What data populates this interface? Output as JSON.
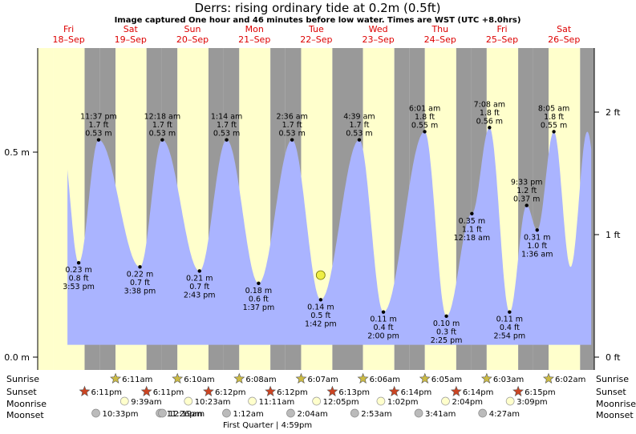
{
  "header": {
    "title": "Derrs: rising  ordinary tide at 0.2m (0.5ft)",
    "subtitle": "Image captured One hour and 46 minutes before low water. Times are WST (UTC +8.0hrs)"
  },
  "days": [
    {
      "dow": "Fri",
      "date": "18–Sep"
    },
    {
      "dow": "Sat",
      "date": "19–Sep"
    },
    {
      "dow": "Sun",
      "date": "20–Sep"
    },
    {
      "dow": "Mon",
      "date": "21–Sep"
    },
    {
      "dow": "Tue",
      "date": "22–Sep"
    },
    {
      "dow": "Wed",
      "date": "23–Sep"
    },
    {
      "dow": "Thu",
      "date": "24–Sep"
    },
    {
      "dow": "Fri",
      "date": "25–Sep"
    },
    {
      "dow": "Sat",
      "date": "26–Sep"
    }
  ],
  "axes": {
    "left_ticks": [
      "0.5 m",
      "0.0 m"
    ],
    "right_ticks": [
      "2 ft",
      "1 ft",
      "0 ft"
    ]
  },
  "rows": {
    "sunrise_label": "Sunrise",
    "sunset_label": "Sunset",
    "moonrise_label": "Moonrise",
    "moonset_label": "Moonset"
  },
  "sunrise": [
    "6:11am",
    "6:10am",
    "6:08am",
    "6:07am",
    "6:06am",
    "6:05am",
    "6:03am",
    "6:02am"
  ],
  "sunset": [
    "6:11pm",
    "6:11pm",
    "6:12pm",
    "6:12pm",
    "6:13pm",
    "6:14pm",
    "6:14pm",
    "6:15pm"
  ],
  "moonrise": [
    "9:39am",
    "10:23am",
    "11:11am",
    "12:05pm",
    "1:02pm",
    "2:04pm",
    "3:09pm"
  ],
  "moonset": [
    "10:33pm",
    "11:26pm",
    "12:19am",
    "1:12am",
    "2:04am",
    "2:53am",
    "3:41am",
    "4:27am"
  ],
  "moon_phase": "First Quarter | 4:59pm",
  "colors": {
    "day_band": "#ffffcc",
    "night_band": "#999999",
    "tide_fill": "#aab4ff",
    "date_red": "#dd0000",
    "sun_star": "#ccbb44",
    "sunset_star": "#cc4422",
    "moonrise_circle": "#ffffcc",
    "moonset_circle": "#bbbbbb",
    "current_marker": "#eeee44"
  },
  "chart_data": {
    "type": "area",
    "y_units": "m",
    "ylim_m": [
      0,
      0.72
    ],
    "extremes": [
      {
        "kind": "low",
        "time": "3:53 pm",
        "m": "0.23 m",
        "ft": "0.8 ft",
        "v": 0.23
      },
      {
        "kind": "high",
        "time": "11:37 pm",
        "m": "0.53 m",
        "ft": "1.7 ft",
        "v": 0.53
      },
      {
        "kind": "low",
        "time": "3:38 pm",
        "m": "0.22 m",
        "ft": "0.7 ft",
        "v": 0.22
      },
      {
        "kind": "high",
        "time": "12:18 am",
        "m": "0.53 m",
        "ft": "1.7 ft",
        "v": 0.53
      },
      {
        "kind": "low",
        "time": "2:43 pm",
        "m": "0.21 m",
        "ft": "0.7 ft",
        "v": 0.21
      },
      {
        "kind": "high",
        "time": "1:14 am",
        "m": "0.53 m",
        "ft": "1.7 ft",
        "v": 0.53
      },
      {
        "kind": "low",
        "time": "1:37 pm",
        "m": "0.18 m",
        "ft": "0.6 ft",
        "v": 0.18
      },
      {
        "kind": "high",
        "time": "2:36 am",
        "m": "0.53 m",
        "ft": "1.7 ft",
        "v": 0.53
      },
      {
        "kind": "low",
        "time": "1:42 pm",
        "m": "0.14 m",
        "ft": "0.5 ft",
        "v": 0.14
      },
      {
        "kind": "high",
        "time": "4:39 am",
        "m": "0.53 m",
        "ft": "1.7 ft",
        "v": 0.53
      },
      {
        "kind": "low",
        "time": "2:00 pm",
        "m": "0.11 m",
        "ft": "0.4 ft",
        "v": 0.11
      },
      {
        "kind": "high",
        "time": "6:01 am",
        "m": "0.55 m",
        "ft": "1.8 ft",
        "v": 0.55
      },
      {
        "kind": "low",
        "time": "2:25 pm",
        "m": "0.10 m",
        "ft": "0.3 ft",
        "v": 0.1
      },
      {
        "kind": "low",
        "time": "12:18 am",
        "m": "0.35 m",
        "ft": "1.1 ft",
        "v": 0.35
      },
      {
        "kind": "high",
        "time": "7:08 am",
        "m": "0.56 m",
        "ft": "1.8 ft",
        "v": 0.56
      },
      {
        "kind": "low",
        "time": "2:54 pm",
        "m": "0.11 m",
        "ft": "0.4 ft",
        "v": 0.11
      },
      {
        "kind": "high",
        "time": "9:33 pm",
        "m": "0.37 m",
        "ft": "1.2 ft",
        "v": 0.37
      },
      {
        "kind": "low",
        "time": "1:36 am",
        "m": "0.31 m",
        "ft": "1.0 ft",
        "v": 0.31
      },
      {
        "kind": "high",
        "time": "8:05 am",
        "m": "0.55 m",
        "ft": "1.8 ft",
        "v": 0.55
      }
    ],
    "current_level_m": 0.2
  }
}
